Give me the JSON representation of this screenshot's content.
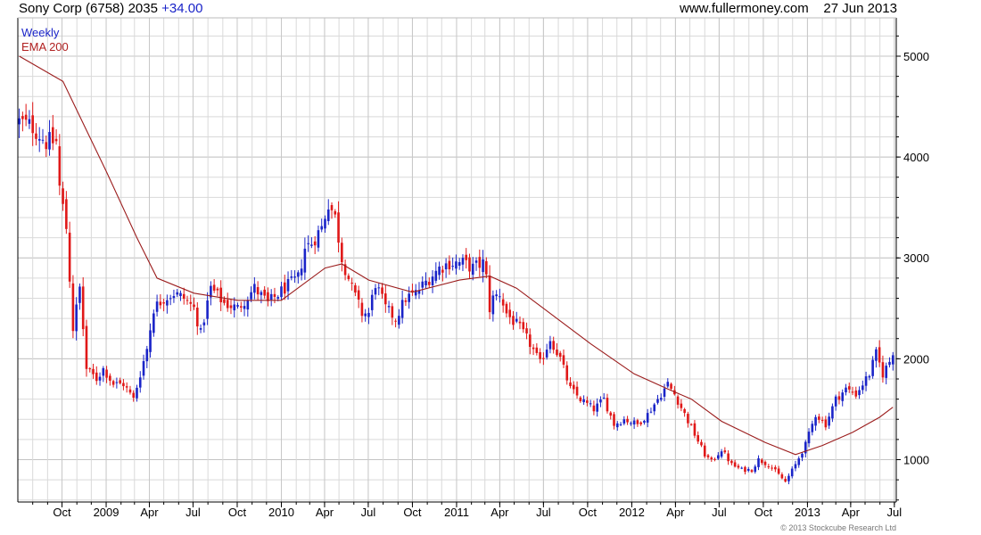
{
  "header": {
    "title": "Sony Corp (6758) 2035",
    "change": "+34.00",
    "site": "www.fullermoney.com",
    "date": "27 Jun 2013"
  },
  "legend": {
    "weekly": "Weekly",
    "ema": "EMA 200"
  },
  "copyright": "© 2013 Stockcube Research Ltd",
  "colors": {
    "up": "#1a24c8",
    "down": "#e01818",
    "ema": "#9b1c1c",
    "grid": "#d9d9d9",
    "axis": "#000000"
  },
  "chart_data": {
    "type": "candlestick",
    "title": "Sony Corp (6758) 2035",
    "x_tick_labels": [
      "Oct",
      "2009",
      "Apr",
      "Jul",
      "Oct",
      "2010",
      "Apr",
      "Jul",
      "Oct",
      "2011",
      "Apr",
      "Jul",
      "Oct",
      "2012",
      "Apr",
      "Jul",
      "Oct",
      "2013",
      "Apr",
      "Jul"
    ],
    "y_tick_labels": [
      "1000",
      "2000",
      "3000",
      "4000",
      "5000"
    ],
    "y_range": [
      580,
      5380
    ],
    "x_range": [
      "2008-07-01",
      "2013-07-05"
    ],
    "grid": true,
    "y_axis_side": "right",
    "price_path": [
      [
        "2008-07-04",
        4350
      ],
      [
        "2008-08-01",
        4300
      ],
      [
        "2008-08-29",
        4150
      ],
      [
        "2008-09-19",
        4150
      ],
      [
        "2008-09-26",
        3700
      ],
      [
        "2008-10-10",
        3300
      ],
      [
        "2008-10-24",
        2300
      ],
      [
        "2008-11-07",
        2700
      ],
      [
        "2008-11-21",
        1900
      ],
      [
        "2008-12-12",
        1800
      ],
      [
        "2008-12-26",
        1900
      ],
      [
        "2009-01-16",
        1750
      ],
      [
        "2009-02-06",
        1750
      ],
      [
        "2009-02-27",
        1600
      ],
      [
        "2009-03-13",
        1850
      ],
      [
        "2009-03-27",
        2100
      ],
      [
        "2009-04-10",
        2500
      ],
      [
        "2009-05-01",
        2600
      ],
      [
        "2009-05-22",
        2650
      ],
      [
        "2009-06-12",
        2600
      ],
      [
        "2009-07-03",
        2500
      ],
      [
        "2009-07-17",
        2250
      ],
      [
        "2009-08-07",
        2700
      ],
      [
        "2009-09-04",
        2550
      ],
      [
        "2009-10-02",
        2500
      ],
      [
        "2009-11-06",
        2700
      ],
      [
        "2009-12-04",
        2550
      ],
      [
        "2010-01-08",
        2700
      ],
      [
        "2010-02-05",
        2800
      ],
      [
        "2010-02-19",
        3100
      ],
      [
        "2010-03-05",
        3150
      ],
      [
        "2010-03-26",
        3300
      ],
      [
        "2010-04-09",
        3550
      ],
      [
        "2010-04-23",
        3400
      ],
      [
        "2010-05-07",
        3000
      ],
      [
        "2010-05-28",
        2700
      ],
      [
        "2010-06-18",
        2450
      ],
      [
        "2010-07-02",
        2450
      ],
      [
        "2010-07-16",
        2750
      ],
      [
        "2010-08-06",
        2500
      ],
      [
        "2010-08-27",
        2400
      ],
      [
        "2010-09-17",
        2600
      ],
      [
        "2010-10-08",
        2650
      ],
      [
        "2010-11-05",
        2800
      ],
      [
        "2010-11-26",
        2900
      ],
      [
        "2010-12-17",
        2950
      ],
      [
        "2011-01-14",
        2950
      ],
      [
        "2011-02-04",
        2900
      ],
      [
        "2011-02-25",
        2950
      ],
      [
        "2011-03-04",
        2800
      ],
      [
        "2011-03-11",
        2500
      ],
      [
        "2011-03-18",
        2600
      ],
      [
        "2011-04-01",
        2650
      ],
      [
        "2011-04-15",
        2450
      ],
      [
        "2011-05-13",
        2300
      ],
      [
        "2011-06-03",
        2150
      ],
      [
        "2011-06-24",
        1950
      ],
      [
        "2011-07-15",
        2200
      ],
      [
        "2011-08-05",
        2000
      ],
      [
        "2011-08-26",
        1700
      ],
      [
        "2011-09-16",
        1600
      ],
      [
        "2011-10-14",
        1500
      ],
      [
        "2011-11-04",
        1600
      ],
      [
        "2011-11-25",
        1350
      ],
      [
        "2011-12-16",
        1400
      ],
      [
        "2012-01-13",
        1350
      ],
      [
        "2012-02-03",
        1450
      ],
      [
        "2012-02-24",
        1600
      ],
      [
        "2012-03-16",
        1750
      ],
      [
        "2012-03-30",
        1650
      ],
      [
        "2012-04-20",
        1450
      ],
      [
        "2012-05-11",
        1250
      ],
      [
        "2012-06-01",
        1050
      ],
      [
        "2012-06-15",
        980
      ],
      [
        "2012-07-06",
        1100
      ],
      [
        "2012-07-27",
        950
      ],
      [
        "2012-08-17",
        900
      ],
      [
        "2012-09-07",
        900
      ],
      [
        "2012-09-21",
        1000
      ],
      [
        "2012-10-12",
        950
      ],
      [
        "2012-11-02",
        850
      ],
      [
        "2012-11-16",
        780
      ],
      [
        "2012-12-07",
        950
      ],
      [
        "2012-12-28",
        1150
      ],
      [
        "2013-01-18",
        1450
      ],
      [
        "2013-02-08",
        1350
      ],
      [
        "2013-03-01",
        1600
      ],
      [
        "2013-03-22",
        1700
      ],
      [
        "2013-04-12",
        1650
      ],
      [
        "2013-05-10",
        1850
      ],
      [
        "2013-05-24",
        2050
      ],
      [
        "2013-06-07",
        1850
      ],
      [
        "2013-06-28",
        2035
      ]
    ],
    "ema_path": [
      [
        "2008-07-04",
        5000
      ],
      [
        "2008-10-03",
        4750
      ],
      [
        "2009-01-02",
        3850
      ],
      [
        "2009-03-06",
        3200
      ],
      [
        "2009-04-17",
        2800
      ],
      [
        "2009-07-03",
        2650
      ],
      [
        "2009-10-02",
        2580
      ],
      [
        "2010-01-01",
        2580
      ],
      [
        "2010-04-02",
        2900
      ],
      [
        "2010-05-07",
        2940
      ],
      [
        "2010-07-02",
        2780
      ],
      [
        "2010-10-01",
        2660
      ],
      [
        "2011-01-07",
        2780
      ],
      [
        "2011-03-11",
        2820
      ],
      [
        "2011-05-06",
        2700
      ],
      [
        "2011-07-01",
        2500
      ],
      [
        "2011-10-07",
        2150
      ],
      [
        "2012-01-06",
        1850
      ],
      [
        "2012-03-16",
        1700
      ],
      [
        "2012-05-04",
        1600
      ],
      [
        "2012-07-06",
        1380
      ],
      [
        "2012-10-05",
        1170
      ],
      [
        "2012-12-07",
        1050
      ],
      [
        "2013-02-01",
        1140
      ],
      [
        "2013-04-05",
        1270
      ],
      [
        "2013-05-31",
        1420
      ],
      [
        "2013-06-28",
        1520
      ]
    ],
    "series": [
      {
        "name": "Weekly",
        "color": "up-blue/down-red candlesticks"
      },
      {
        "name": "EMA 200",
        "color": "#9b1c1c"
      }
    ]
  }
}
